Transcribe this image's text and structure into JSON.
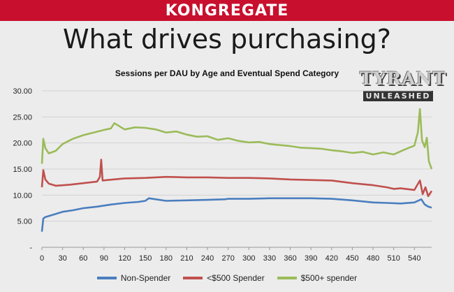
{
  "header": {
    "brand": "KONGREGATE"
  },
  "slide": {
    "title": "What drives purchasing?"
  },
  "logo": {
    "main_text": "TYRANT",
    "sub_text": "UNLEASHED"
  },
  "chart_data": {
    "type": "line",
    "title": "Sessions per DAU by Age and Eventual Spend Category",
    "xlabel": "",
    "ylabel": "",
    "xlim": [
      0,
      565
    ],
    "ylim": [
      0,
      30
    ],
    "grid": true,
    "legend_position": "bottom",
    "x_ticks": [
      0,
      30,
      60,
      90,
      120,
      150,
      180,
      210,
      240,
      270,
      300,
      330,
      360,
      390,
      420,
      450,
      480,
      510,
      540
    ],
    "y_ticks": [
      0,
      5,
      10,
      15,
      20,
      25,
      30
    ],
    "y_tick_labels": [
      "-",
      "5.00",
      "10.00",
      "15.00",
      "20.00",
      "25.00",
      "30.00"
    ],
    "series": [
      {
        "name": "Non-Spender",
        "color": "#4a7ebf",
        "x": [
          0,
          2,
          5,
          10,
          20,
          30,
          45,
          60,
          80,
          90,
          100,
          120,
          140,
          150,
          155,
          180,
          210,
          240,
          265,
          270,
          300,
          330,
          360,
          390,
          420,
          450,
          480,
          500,
          520,
          540,
          550,
          555,
          560,
          565
        ],
        "y": [
          3.0,
          5.5,
          5.8,
          6.0,
          6.4,
          6.8,
          7.1,
          7.5,
          7.8,
          8.0,
          8.2,
          8.5,
          8.7,
          8.9,
          9.4,
          8.9,
          9.0,
          9.1,
          9.2,
          9.3,
          9.3,
          9.4,
          9.4,
          9.4,
          9.3,
          9.0,
          8.6,
          8.5,
          8.4,
          8.6,
          9.2,
          8.2,
          7.8,
          7.6
        ]
      },
      {
        "name": "<$500 Spender",
        "color": "#c0504d",
        "x": [
          0,
          2,
          5,
          10,
          20,
          40,
          60,
          80,
          84,
          86,
          88,
          95,
          120,
          150,
          180,
          210,
          240,
          270,
          300,
          330,
          360,
          390,
          420,
          450,
          480,
          500,
          510,
          520,
          540,
          548,
          552,
          556,
          560,
          565
        ],
        "y": [
          11.5,
          14.8,
          13.0,
          12.2,
          11.8,
          12.0,
          12.3,
          12.6,
          13.5,
          16.8,
          12.8,
          12.9,
          13.2,
          13.3,
          13.5,
          13.4,
          13.4,
          13.3,
          13.3,
          13.2,
          13.0,
          12.9,
          12.8,
          12.3,
          11.9,
          11.5,
          11.2,
          11.3,
          11.0,
          12.8,
          10.2,
          11.5,
          9.8,
          10.8
        ]
      },
      {
        "name": "$500+ spender",
        "color": "#9bbb59",
        "x": [
          0,
          2,
          5,
          10,
          20,
          30,
          45,
          60,
          75,
          90,
          100,
          105,
          120,
          135,
          150,
          165,
          180,
          195,
          210,
          225,
          240,
          255,
          270,
          285,
          300,
          315,
          330,
          345,
          360,
          375,
          390,
          405,
          420,
          435,
          450,
          465,
          480,
          495,
          510,
          525,
          540,
          545,
          548,
          551,
          555,
          558,
          561,
          565
        ],
        "y": [
          16.0,
          20.8,
          19.0,
          18.0,
          18.5,
          19.8,
          20.8,
          21.5,
          22.0,
          22.5,
          22.8,
          23.8,
          22.6,
          23.0,
          22.9,
          22.6,
          22.0,
          22.2,
          21.6,
          21.2,
          21.3,
          20.6,
          20.9,
          20.4,
          20.1,
          20.2,
          19.8,
          19.6,
          19.4,
          19.1,
          19.0,
          18.9,
          18.6,
          18.4,
          18.1,
          18.3,
          17.8,
          18.2,
          17.8,
          18.7,
          19.5,
          22.0,
          26.5,
          20.5,
          19.2,
          21.0,
          16.5,
          15.0
        ]
      }
    ]
  }
}
